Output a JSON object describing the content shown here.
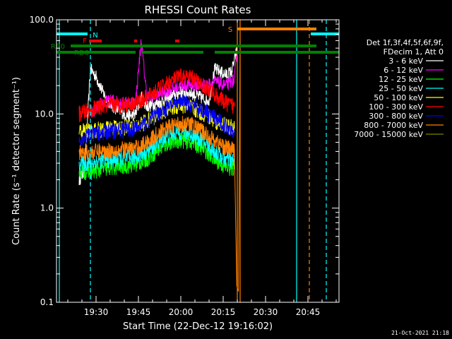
{
  "chart_data": {
    "type": "line",
    "title": "RHESSI Count Rates",
    "xlabel": "Start Time (22-Dec-12 19:16:02)",
    "ylabel": "Count Rate (s⁻¹ detector segment⁻¹)",
    "yscale": "log",
    "ylim": [
      0.1,
      100.0
    ],
    "xlim": [
      "19:16",
      "20:56"
    ],
    "x_ticks": [
      "19:30",
      "19:45",
      "20:00",
      "20:15",
      "20:30",
      "20:45"
    ],
    "y_ticks": [
      "0.1",
      "1.0",
      "10.0",
      "100.0"
    ],
    "legend_header": [
      "Det 1f,3f,4f,5f,6f,9f,",
      "FDecim 1, Att 0"
    ],
    "series": [
      {
        "name": "3 - 6 keV",
        "color": "#ffffff",
        "x": [
          "19:24",
          "19:26",
          "19:28",
          "19:30",
          "19:32",
          "19:34",
          "19:36",
          "19:38",
          "19:40",
          "19:42",
          "19:44",
          "19:46",
          "19:48",
          "19:50",
          "19:52",
          "19:54",
          "19:56",
          "19:58",
          "20:00",
          "20:02",
          "20:04",
          "20:06",
          "20:08",
          "20:10",
          "20:12",
          "20:14",
          "20:16",
          "20:18",
          "20:20"
        ],
        "y": [
          2.0,
          2.5,
          30.0,
          25.0,
          18.0,
          14.0,
          12.0,
          11.0,
          10.0,
          9.5,
          10.0,
          15.0,
          12.0,
          12.5,
          13.0,
          14.0,
          15.0,
          16.0,
          17.0,
          17.0,
          16.5,
          15.5,
          14.5,
          14.0,
          30.0,
          28.0,
          26.0,
          28.0,
          50.0
        ]
      },
      {
        "name": "6 - 12 keV",
        "color": "#ff00ff",
        "x": [
          "19:28",
          "19:32",
          "19:36",
          "19:40",
          "19:44",
          "19:46",
          "19:48",
          "19:52",
          "19:56",
          "20:00",
          "20:04",
          "20:08",
          "20:12",
          "20:16",
          "20:19",
          "20:20"
        ],
        "y": [
          10.0,
          13.0,
          14.0,
          13.0,
          13.5,
          60.0,
          15.0,
          16.0,
          18.0,
          20.0,
          20.5,
          19.5,
          22.0,
          20.0,
          23.0,
          48.0
        ]
      },
      {
        "name": "12 - 25 keV",
        "color": "#00ff00",
        "x": [
          "19:24",
          "19:28",
          "19:32",
          "19:36",
          "19:40",
          "19:44",
          "19:48",
          "19:52",
          "19:56",
          "20:00",
          "20:04",
          "20:08",
          "20:12",
          "20:16",
          "20:19"
        ],
        "y": [
          2.5,
          2.4,
          2.6,
          2.7,
          2.8,
          2.9,
          3.3,
          4.2,
          5.0,
          5.3,
          5.0,
          4.3,
          3.3,
          2.7,
          2.6
        ]
      },
      {
        "name": "25 - 50 keV",
        "color": "#00ffff",
        "x": [
          "19:24",
          "19:28",
          "19:32",
          "19:36",
          "19:40",
          "19:44",
          "19:48",
          "19:52",
          "19:56",
          "20:00",
          "20:04",
          "20:08",
          "20:12",
          "20:16",
          "20:19"
        ],
        "y": [
          3.0,
          3.0,
          3.2,
          3.3,
          3.4,
          3.5,
          4.0,
          5.0,
          6.0,
          6.5,
          6.1,
          5.1,
          4.0,
          3.3,
          3.1
        ]
      },
      {
        "name": "50 - 100 keV",
        "color": "#ffff00",
        "x": [
          "19:24",
          "19:28",
          "19:32",
          "19:36",
          "19:40",
          "19:44",
          "19:48",
          "19:52",
          "19:56",
          "20:00",
          "20:04",
          "20:08",
          "20:12",
          "20:16",
          "20:19"
        ],
        "y": [
          6.5,
          6.6,
          6.8,
          7.0,
          7.2,
          7.4,
          8.3,
          10.0,
          11.5,
          12.3,
          11.6,
          10.0,
          8.5,
          7.5,
          7.0
        ]
      },
      {
        "name": "100 - 300 keV",
        "color": "#ff0000",
        "x": [
          "19:24",
          "19:28",
          "19:32",
          "19:36",
          "19:40",
          "19:44",
          "19:48",
          "19:52",
          "19:56",
          "20:00",
          "20:04",
          "20:08",
          "20:12",
          "20:16",
          "20:19"
        ],
        "y": [
          10.0,
          11.0,
          12.0,
          12.5,
          12.5,
          13.0,
          15.0,
          18.0,
          22.0,
          25.0,
          24.0,
          20.0,
          16.0,
          13.0,
          12.0
        ]
      },
      {
        "name": "300 - 800 keV",
        "color": "#0000ff",
        "x": [
          "19:24",
          "19:28",
          "19:32",
          "19:36",
          "19:40",
          "19:44",
          "19:48",
          "19:52",
          "19:56",
          "20:00",
          "20:04",
          "20:08",
          "20:12",
          "20:16",
          "20:19"
        ],
        "y": [
          5.5,
          6.0,
          6.3,
          6.6,
          6.8,
          7.0,
          8.2,
          10.0,
          12.0,
          13.3,
          12.5,
          10.8,
          9.0,
          7.5,
          6.8
        ]
      },
      {
        "name": "800 - 7000 keV",
        "color": "#ff8000",
        "x": [
          "19:24",
          "19:28",
          "19:32",
          "19:36",
          "19:40",
          "19:44",
          "19:48",
          "19:52",
          "19:56",
          "20:00",
          "20:04",
          "20:08",
          "20:12",
          "20:16",
          "20:19",
          "20:19.8",
          "20:20.4",
          "20:21"
        ],
        "y": [
          3.8,
          3.9,
          4.0,
          4.1,
          4.2,
          4.3,
          5.0,
          6.2,
          7.3,
          8.0,
          7.6,
          6.4,
          5.2,
          4.4,
          4.1,
          0.15,
          0.13,
          50.0
        ]
      },
      {
        "name": "7000 - 15000 keV",
        "color": "#808000",
        "x": [],
        "y": []
      }
    ],
    "state_bars": {
      "N": {
        "label": "N",
        "color": "#00ffff",
        "segments": [
          [
            "19:16",
            "19:27"
          ],
          [
            "20:46",
            "20:56"
          ]
        ]
      },
      "F": {
        "label": "F",
        "color": "#ff0000",
        "segments": [
          [
            "19:27.5",
            "19:32"
          ],
          [
            "19:43.5",
            "19:44.5"
          ],
          [
            "19:58",
            "19:59.5"
          ]
        ]
      },
      "S": {
        "label": "S",
        "color": "#ff8000",
        "segments": [
          [
            "20:20",
            "20:48"
          ]
        ]
      },
      "RB0": {
        "label": "RB0",
        "color": "#008000",
        "segments": [
          [
            "19:21",
            "20:48"
          ]
        ]
      },
      "RD6": {
        "label": "RD6",
        "color": "#008000",
        "segments": [
          [
            "19:16",
            "19:44"
          ],
          [
            "19:46",
            "20:08"
          ],
          [
            "20:12",
            "20:48"
          ],
          [
            "20:48",
            "20:56"
          ]
        ]
      }
    },
    "vertical_lines": [
      {
        "x": "19:17",
        "color": "#00ffff",
        "style": "solid"
      },
      {
        "x": "19:28",
        "color": "#00ffff",
        "style": "dashed"
      },
      {
        "x": "20:20",
        "color": "#ff8000",
        "style": "solid"
      },
      {
        "x": "20:21",
        "color": "#ff8000",
        "style": "solid"
      },
      {
        "x": "20:41",
        "color": "#00ffff",
        "style": "solid"
      },
      {
        "x": "20:45.5",
        "color": "#ff8000",
        "style": "dashed"
      },
      {
        "x": "20:51.5",
        "color": "#00ffff",
        "style": "dashed"
      }
    ],
    "legend_position": "right"
  },
  "footer_timestamp": "21-Oct-2021 21:18"
}
